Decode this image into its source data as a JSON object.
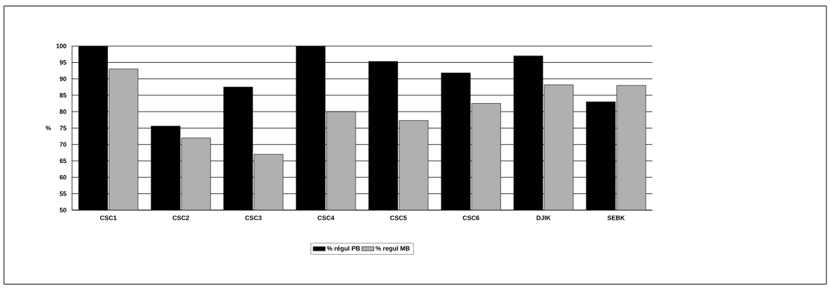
{
  "chart_data": {
    "type": "bar",
    "ylabel": "%",
    "categories": [
      "CSC1",
      "CSC2",
      "CSC3",
      "CSC4",
      "CSC5",
      "CSC6",
      "DJIK",
      "SEBK"
    ],
    "series": [
      {
        "name": "% régul PB",
        "color": "#000000",
        "values": [
          100,
          75.6,
          87.5,
          100,
          95.3,
          91.8,
          97,
          83
        ]
      },
      {
        "name": "% regul MB",
        "color": "#b0b0b0",
        "values": [
          93,
          72,
          67,
          80,
          77.3,
          82.5,
          88.2,
          88
        ]
      }
    ],
    "ylim": [
      50,
      100
    ],
    "yticks": [
      50,
      55,
      60,
      65,
      70,
      75,
      80,
      85,
      90,
      95,
      100
    ],
    "grid": "y",
    "legend": "bottom"
  }
}
